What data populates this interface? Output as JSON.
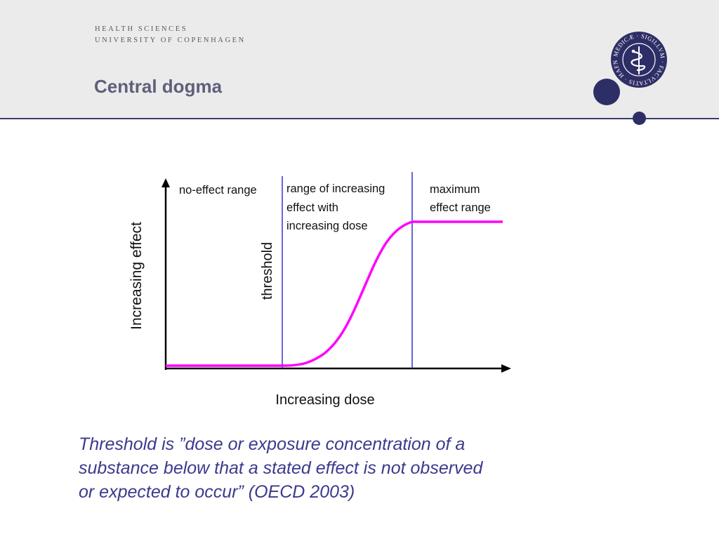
{
  "header": {
    "brand_line1": "Health Sciences",
    "brand_line2": "University of Copenhagen",
    "title": "Central dogma",
    "seal_text": "MEDICÆ · SIGILLVM · FACVLTATIS · HAFNIENSIS",
    "accent_color": "#2e2e66"
  },
  "diagram": {
    "y_axis_label": "Increasing effect",
    "x_axis_label": "Increasing dose",
    "threshold_label": "threshold",
    "regions": [
      {
        "lines": [
          "no-effect range"
        ]
      },
      {
        "lines": [
          "range of increasing",
          "effect with",
          "increasing dose"
        ]
      },
      {
        "lines": [
          "maximum",
          "effect range"
        ]
      }
    ],
    "curve_color": "#ff00ff",
    "divider_color": "#3333cc"
  },
  "caption": {
    "lines": [
      "Threshold is ”dose or exposure concentration of a",
      "substance below that a stated effect is not observed",
      "or expected to occur” (OECD 2003)"
    ]
  }
}
